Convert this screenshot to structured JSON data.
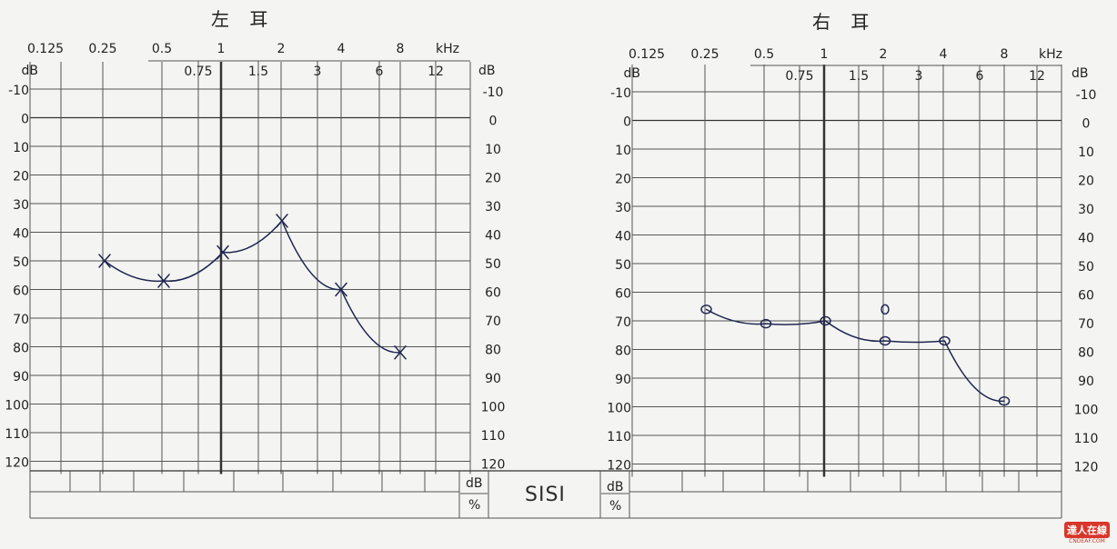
{
  "left_title": "左 耳",
  "right_title": "右 耳",
  "sisi_label": "SISI",
  "db_unit": "dB",
  "percent_unit": "%",
  "khz_unit": "kHz",
  "watermark": {
    "logo": "達人在線",
    "url": "CNDEAF.COM"
  },
  "colors": {
    "ink": "#1f2650",
    "grid": "#555555",
    "paper": "#f4f4f2"
  },
  "chart_data": [
    {
      "type": "line",
      "title": "左 耳",
      "x_unit": "kHz",
      "y_unit": "dB",
      "top_ticks": [
        "0.125",
        "0.25",
        "0.5",
        "1",
        "2",
        "4",
        "8"
      ],
      "mid_ticks": [
        "0.75",
        "1.5",
        "3",
        "6",
        "12"
      ],
      "y_ticks": [
        "-10",
        "0",
        "10",
        "20",
        "30",
        "40",
        "50",
        "60",
        "70",
        "80",
        "90",
        "100",
        "110",
        "120"
      ],
      "ylim": [
        -10,
        120
      ],
      "y_inverted": true,
      "marker": "x",
      "series": [
        {
          "x": [
            0.25,
            0.5,
            1,
            2,
            4,
            8
          ],
          "y": [
            50,
            57,
            47,
            36,
            60,
            82
          ]
        }
      ]
    },
    {
      "type": "line",
      "title": "右 耳",
      "x_unit": "kHz",
      "y_unit": "dB",
      "top_ticks": [
        "0.125",
        "0.25",
        "0.5",
        "1",
        "2",
        "4",
        "8"
      ],
      "mid_ticks": [
        "0.75",
        "1.5",
        "3",
        "6",
        "12"
      ],
      "y_ticks": [
        "-10",
        "0",
        "10",
        "20",
        "30",
        "40",
        "50",
        "60",
        "70",
        "80",
        "90",
        "100",
        "110",
        "120"
      ],
      "ylim": [
        -10,
        120
      ],
      "y_inverted": true,
      "marker": "o",
      "series": [
        {
          "x": [
            0.25,
            0.5,
            1,
            2,
            4,
            8
          ],
          "y": [
            66,
            71,
            70,
            77,
            77,
            98
          ]
        }
      ],
      "extra_points": [
        {
          "x": 2,
          "y": 66
        }
      ]
    }
  ]
}
